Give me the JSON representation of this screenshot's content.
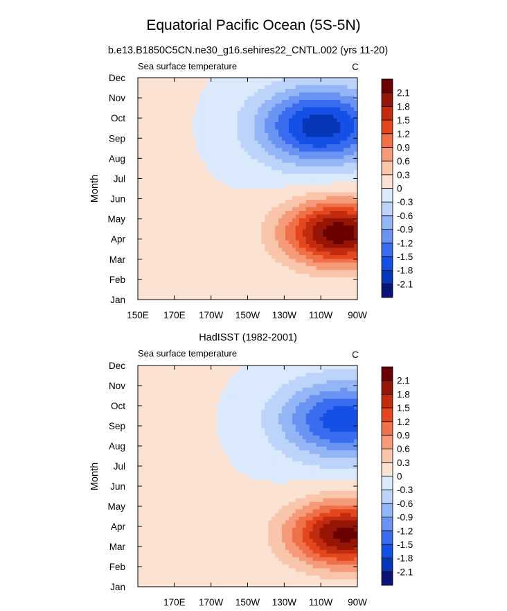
{
  "figure": {
    "title": "Equatorial Pacific Ocean (5S-5N)"
  },
  "colorbar": {
    "levels": [
      "-2.1",
      "-1.8",
      "-1.5",
      "-1.2",
      "-0.9",
      "-0.6",
      "-0.3",
      "0",
      "0.3",
      "0.6",
      "0.9",
      "1.2",
      "1.5",
      "1.8",
      "2.1"
    ],
    "colors": [
      "#0a1478",
      "#0737b8",
      "#1450e6",
      "#3a6cf0",
      "#6a94f2",
      "#94b6f6",
      "#bcd4fa",
      "#dbe9fd",
      "#fce2d2",
      "#f9c6ac",
      "#f59b79",
      "#f07047",
      "#e4461e",
      "#c12b0e",
      "#961505",
      "#6b0000"
    ]
  },
  "chart_data": [
    {
      "type": "heatmap",
      "title": "b.e13.B1850C5CN.ne30_g16.sehires22_CNTL.002 (yrs 11-20)",
      "subtitle": "Sea surface temperature",
      "units": "C",
      "xlabel": "",
      "ylabel": "Month",
      "x_ticks": [
        "150E",
        "170E",
        "170W",
        "150W",
        "130W",
        "110W",
        "90W"
      ],
      "x_tick_lons": [
        150,
        170,
        190,
        210,
        230,
        250,
        270
      ],
      "xlim": [
        150,
        270
      ],
      "y_ticks": [
        "Jan",
        "Feb",
        "Mar",
        "Apr",
        "May",
        "Jun",
        "Jul",
        "Aug",
        "Sep",
        "Oct",
        "Nov",
        "Dec"
      ],
      "ylim": [
        1,
        12
      ],
      "colorbar_levels": [
        -2.1,
        -1.8,
        -1.5,
        -1.2,
        -0.9,
        -0.6,
        -0.3,
        0,
        0.3,
        0.6,
        0.9,
        1.2,
        1.5,
        1.8,
        2.1
      ],
      "field": {
        "positive_peak": {
          "lon": 260,
          "month": 4.3,
          "value": 2.3
        },
        "negative_peak": {
          "lon": 250,
          "month": 9.6,
          "value": -2.0
        },
        "west_value": 0.1
      }
    },
    {
      "type": "heatmap",
      "title": "HadISST (1982-2001)",
      "subtitle": "Sea surface temperature",
      "units": "C",
      "xlabel": "",
      "ylabel": "Month",
      "x_ticks": [
        "170E",
        "170W",
        "150W",
        "130W",
        "110W",
        "90W"
      ],
      "x_tick_lons": [
        170,
        190,
        210,
        230,
        250,
        270
      ],
      "xlim": [
        150,
        270
      ],
      "y_ticks": [
        "Jan",
        "Feb",
        "Mar",
        "Apr",
        "May",
        "Jun",
        "Jul",
        "Aug",
        "Sep",
        "Oct",
        "Nov",
        "Dec"
      ],
      "ylim": [
        1,
        12
      ],
      "colorbar_levels": [
        -2.1,
        -1.8,
        -1.5,
        -1.2,
        -0.9,
        -0.6,
        -0.3,
        0,
        0.3,
        0.6,
        0.9,
        1.2,
        1.5,
        1.8,
        2.1
      ],
      "field": {
        "positive_peak": {
          "lon": 263,
          "month": 3.6,
          "value": 2.2
        },
        "negative_peak": {
          "lon": 262,
          "month": 9.3,
          "value": -1.7
        },
        "west_value": 0.15
      }
    }
  ]
}
